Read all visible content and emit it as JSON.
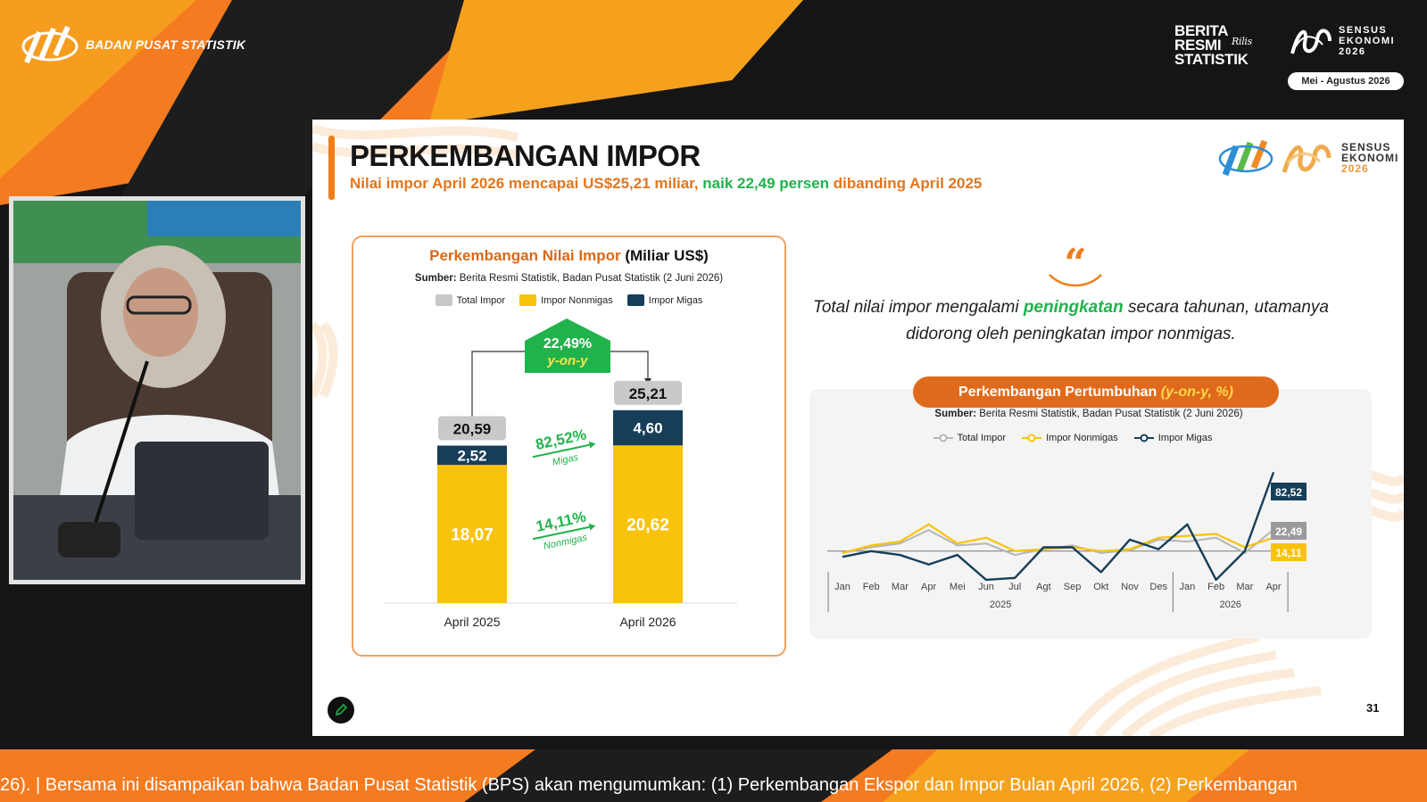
{
  "header": {
    "org_name": "BADAN PUSAT STATISTIK",
    "brs_lines": [
      "BERITA",
      "RESMI",
      "STATISTIK"
    ],
    "brs_tag": "Rilis",
    "sensus_lines": [
      "SENSUS",
      "EKONOMI",
      "2026"
    ],
    "period": "Mei - Agustus 2026"
  },
  "slide": {
    "title": "PERKEMBANGAN IMPOR",
    "subtitle_a": "Nilai impor April 2026 mencapai US$25,21 miliar,",
    "subtitle_b": "naik 22,49 persen",
    "subtitle_c": "dibanding April 2025",
    "logo_lines": [
      "SENSUS",
      "EKONOMI",
      "2026"
    ],
    "page_number": "31",
    "quote_mark": "“",
    "quote_a": "Total nilai impor mengalami",
    "quote_hl": "peningkatan",
    "quote_b": "secara tahunan, utamanya didorong oleh peningkatan impor nonmigas."
  },
  "left_chart": {
    "title_a": "Perkembangan Nilai Impor",
    "title_b": "(Miliar US$)",
    "source_label": "Sumber:",
    "source": "Berita Resmi Statistik, Badan Pusat Statistik (2 Juni 2026)",
    "legend": [
      "Total Impor",
      "Impor Nonmigas",
      "Impor Migas"
    ],
    "yoy_value": "22,49%",
    "yoy_label": "y-on-y",
    "migas_growth": "82,52%",
    "migas_label": "Migas",
    "nonmigas_growth": "14,11%",
    "nonmigas_label": "Nonmigas"
  },
  "right_chart": {
    "title_a": "Perkembangan Pertumbuhan",
    "title_b": "(y-on-y, %)",
    "source_label": "Sumber:",
    "source": "Berita Resmi Statistik, Badan Pusat Statistik (2 Juni 2026)",
    "legend": [
      "Total Impor",
      "Impor Nonmigas",
      "Impor Migas"
    ],
    "end_labels": [
      "82,52",
      "22,49",
      "14,11"
    ]
  },
  "colors": {
    "orange": "#ef7d1a",
    "green": "#20b34c",
    "yellow": "#f8c30c",
    "navy": "#163e59",
    "grey": "#c9c9c9"
  },
  "chart_data": [
    {
      "type": "bar",
      "title": "Perkembangan Nilai Impor (Miliar US$)",
      "categories": [
        "April 2025",
        "April 2026"
      ],
      "series": [
        {
          "name": "Impor Nonmigas",
          "values": [
            "18,07",
            "20,62"
          ]
        },
        {
          "name": "Impor Migas",
          "values": [
            "2,52",
            "4,60"
          ]
        },
        {
          "name": "Total Impor",
          "values": [
            "20,59",
            "25,21"
          ]
        }
      ],
      "ylim": [
        0,
        28
      ]
    },
    {
      "type": "line",
      "title": "Perkembangan Pertumbuhan (y-on-y, %)",
      "x": [
        "Jan",
        "Feb",
        "Mar",
        "Apr",
        "Mei",
        "Jun",
        "Jul",
        "Agt",
        "Sep",
        "Okt",
        "Nov",
        "Des",
        "Jan",
        "Feb",
        "Mar",
        "Apr"
      ],
      "year_groups": [
        {
          "label": "2025",
          "count": 12
        },
        {
          "label": "2026",
          "count": 4
        }
      ],
      "series": [
        {
          "name": "Total Impor",
          "values": [
            -2,
            4,
            8,
            22,
            6,
            8,
            -4,
            2,
            6,
            -2,
            1,
            12,
            10,
            14,
            -2,
            22.49
          ]
        },
        {
          "name": "Impor Nonmigas",
          "values": [
            -2,
            6,
            10,
            28,
            8,
            14,
            0,
            2,
            4,
            0,
            2,
            14,
            16,
            18,
            4,
            14.11
          ]
        },
        {
          "name": "Impor Migas",
          "values": [
            -6,
            0,
            -4,
            -14,
            -4,
            -30,
            -28,
            4,
            4,
            -22,
            12,
            2,
            28,
            -30,
            0,
            82.52
          ]
        }
      ],
      "ylim": [
        -45,
        95
      ]
    }
  ],
  "ticker": "26).  |   Bersama ini disampaikan bahwa Badan Pusat Statistik (BPS) akan mengumumkan: (1) Perkembangan Ekspor dan Impor Bulan April 2026, (2) Perkembangan"
}
